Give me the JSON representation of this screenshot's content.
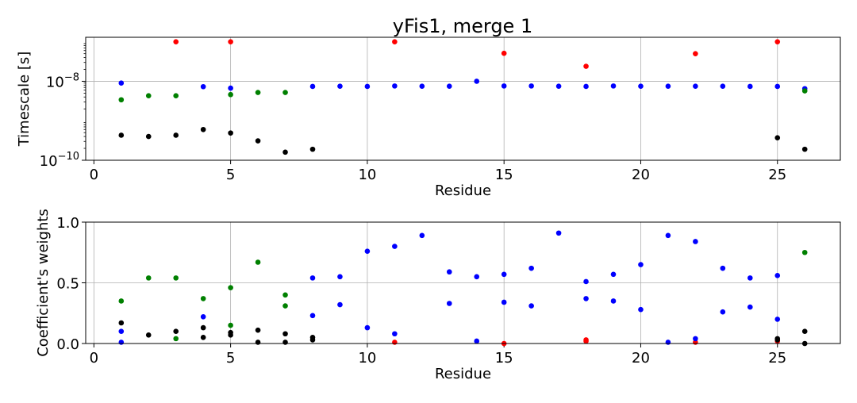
{
  "figure": {
    "title": "yFis1, merge 1"
  },
  "chart_data": [
    {
      "type": "scatter",
      "xlabel": "Residue",
      "ylabel": "Timescale [s]",
      "yscale": "log",
      "xlim": [
        -0.3,
        27.3
      ],
      "ylim": [
        1e-10,
        1.3e-07
      ],
      "xticks": [
        0,
        5,
        10,
        15,
        20,
        25
      ],
      "xtick_labels": [
        "0",
        "5",
        "10",
        "15",
        "20",
        "25"
      ],
      "yticks": [
        1e-10,
        1e-08
      ],
      "ytick_labels": [
        {
          "base": "10",
          "exp": "−10"
        },
        {
          "base": "10",
          "exp": "−8"
        }
      ],
      "grid": true,
      "series": [
        {
          "color": "#ff0000",
          "x": [
            3,
            5,
            11,
            15,
            18,
            22,
            25
          ],
          "y": [
            1e-07,
            1e-07,
            1e-07,
            5.1e-08,
            2.4e-08,
            5e-08,
            1e-07
          ]
        },
        {
          "color": "#0000ff",
          "x": [
            1,
            4,
            5,
            8,
            9,
            10,
            11,
            12,
            13,
            14,
            15,
            16,
            17,
            18,
            19,
            20,
            21,
            22,
            23,
            24,
            25,
            26
          ],
          "y": [
            9e-09,
            7.3e-09,
            6.7e-09,
            7.4e-09,
            7.5e-09,
            7.4e-09,
            7.6e-09,
            7.5e-09,
            7.5e-09,
            1e-08,
            7.6e-09,
            7.6e-09,
            7.5e-09,
            7.4e-09,
            7.6e-09,
            7.5e-09,
            7.5e-09,
            7.5e-09,
            7.5e-09,
            7.4e-09,
            7.4e-09,
            6.5e-09
          ]
        },
        {
          "color": "#008000",
          "x": [
            1,
            2,
            3,
            5,
            6,
            7,
            26
          ],
          "y": [
            3.4e-09,
            4.3e-09,
            4.3e-09,
            4.6e-09,
            5.2e-09,
            5.2e-09,
            5.7e-09
          ]
        },
        {
          "color": "#000000",
          "x": [
            1,
            2,
            3,
            4,
            5,
            6,
            7,
            8,
            25,
            26
          ],
          "y": [
            4.3e-10,
            4e-10,
            4.3e-10,
            6e-10,
            4.9e-10,
            3.1e-10,
            1.6e-10,
            1.9e-10,
            3.7e-10,
            1.9e-10
          ]
        }
      ]
    },
    {
      "type": "scatter",
      "xlabel": "Residue",
      "ylabel": "Coefficient's weights",
      "xlim": [
        -0.3,
        27.3
      ],
      "ylim": [
        0,
        1
      ],
      "xticks": [
        0,
        5,
        10,
        15,
        20,
        25
      ],
      "xtick_labels": [
        "0",
        "5",
        "10",
        "15",
        "20",
        "25"
      ],
      "yticks": [
        0,
        0.5,
        1
      ],
      "ytick_labels": [
        "0.0",
        "0.5",
        "1.0"
      ],
      "grid": true,
      "series": [
        {
          "color": "#ff0000",
          "x": [
            11,
            15,
            18,
            18,
            22,
            25
          ],
          "y": [
            0.01,
            0.0,
            0.02,
            0.03,
            0.01,
            0.02
          ]
        },
        {
          "color": "#0000ff",
          "x": [
            1,
            1,
            4,
            8,
            8,
            9,
            9,
            10,
            10,
            11,
            11,
            12,
            13,
            13,
            14,
            14,
            15,
            15,
            16,
            16,
            17,
            18,
            18,
            19,
            19,
            20,
            20,
            21,
            21,
            22,
            22,
            23,
            23,
            24,
            24,
            25,
            25
          ],
          "y": [
            0.01,
            0.1,
            0.22,
            0.54,
            0.23,
            0.55,
            0.32,
            0.76,
            0.13,
            0.8,
            0.08,
            0.89,
            0.59,
            0.33,
            0.55,
            0.02,
            0.57,
            0.34,
            0.62,
            0.31,
            0.91,
            0.51,
            0.37,
            0.57,
            0.35,
            0.65,
            0.28,
            0.89,
            0.01,
            0.84,
            0.04,
            0.62,
            0.26,
            0.54,
            0.3,
            0.56,
            0.2
          ]
        },
        {
          "color": "#008000",
          "x": [
            1,
            2,
            3,
            3,
            4,
            5,
            5,
            6,
            7,
            7,
            26
          ],
          "y": [
            0.35,
            0.54,
            0.54,
            0.04,
            0.37,
            0.46,
            0.15,
            0.67,
            0.4,
            0.31,
            0.75
          ]
        },
        {
          "color": "#000000",
          "x": [
            1,
            2,
            3,
            4,
            4,
            5,
            5,
            6,
            6,
            7,
            7,
            8,
            8,
            25,
            25,
            26,
            26
          ],
          "y": [
            0.17,
            0.07,
            0.1,
            0.13,
            0.05,
            0.09,
            0.07,
            0.11,
            0.01,
            0.08,
            0.01,
            0.05,
            0.03,
            0.04,
            0.03,
            0.1,
            0.0
          ]
        }
      ]
    }
  ]
}
